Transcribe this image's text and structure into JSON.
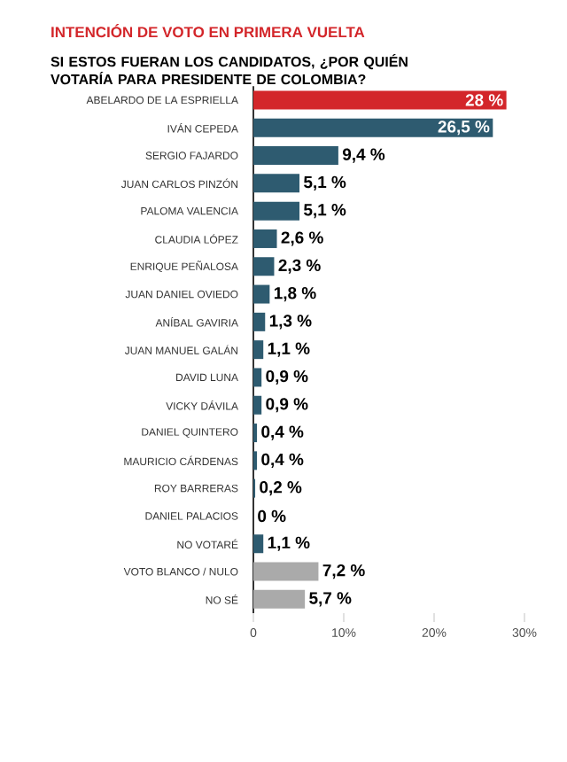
{
  "chart_data": {
    "type": "bar",
    "orientation": "horizontal",
    "title": "INTENCIÓN DE VOTO EN PRIMERA VUELTA",
    "subtitle": "SI ESTOS FUERAN LOS CANDIDATOS, ¿POR QUIÉN VOTARÍA PARA PRESIDENTE DE COLOMBIA?",
    "categories": [
      "ABELARDO DE LA ESPRIELLA",
      "IVÁN CEPEDA",
      "SERGIO FAJARDO",
      "JUAN CARLOS PINZÓN",
      "PALOMA VALENCIA",
      "CLAUDIA LÓPEZ",
      "ENRIQUE PEÑALOSA",
      "JUAN DANIEL OVIEDO",
      "ANÍBAL GAVIRIA",
      "JUAN MANUEL GALÁN",
      "DAVID LUNA",
      "VICKY DÁVILA",
      "DANIEL QUINTERO",
      "MAURICIO CÁRDENAS",
      "ROY BARRERAS",
      "DANIEL PALACIOS",
      "NO VOTARÉ",
      "VOTO BLANCO / NULO",
      "NO SÉ"
    ],
    "values": [
      28,
      26.5,
      9.4,
      5.1,
      5.1,
      2.6,
      2.3,
      1.8,
      1.3,
      1.1,
      0.9,
      0.9,
      0.4,
      0.4,
      0.2,
      0,
      1.1,
      7.2,
      5.7
    ],
    "value_labels": [
      "28 %",
      "26,5 %",
      "9,4 %",
      "5,1 %",
      "5,1 %",
      "2,6 %",
      "2,3 %",
      "1,8 %",
      "1,3 %",
      "1,1 %",
      "0,9 %",
      "0,9 %",
      "0,4 %",
      "0,4 %",
      "0,2 %",
      "0 %",
      "1,1 %",
      "7,2 %",
      "5,7 %"
    ],
    "colors": [
      "#d3262a",
      "#2e5b70",
      "#2e5b70",
      "#2e5b70",
      "#2e5b70",
      "#2e5b70",
      "#2e5b70",
      "#2e5b70",
      "#2e5b70",
      "#2e5b70",
      "#2e5b70",
      "#2e5b70",
      "#2e5b70",
      "#2e5b70",
      "#2e5b70",
      "#2e5b70",
      "#2e5b70",
      "#aaaaaa",
      "#aaaaaa"
    ],
    "xlim": [
      0,
      30
    ],
    "xticks": [
      {
        "value": 0,
        "label": "0"
      },
      {
        "value": 10,
        "label": "10%"
      },
      {
        "value": 20,
        "label": "20%"
      },
      {
        "value": 30,
        "label": "30%"
      }
    ]
  }
}
